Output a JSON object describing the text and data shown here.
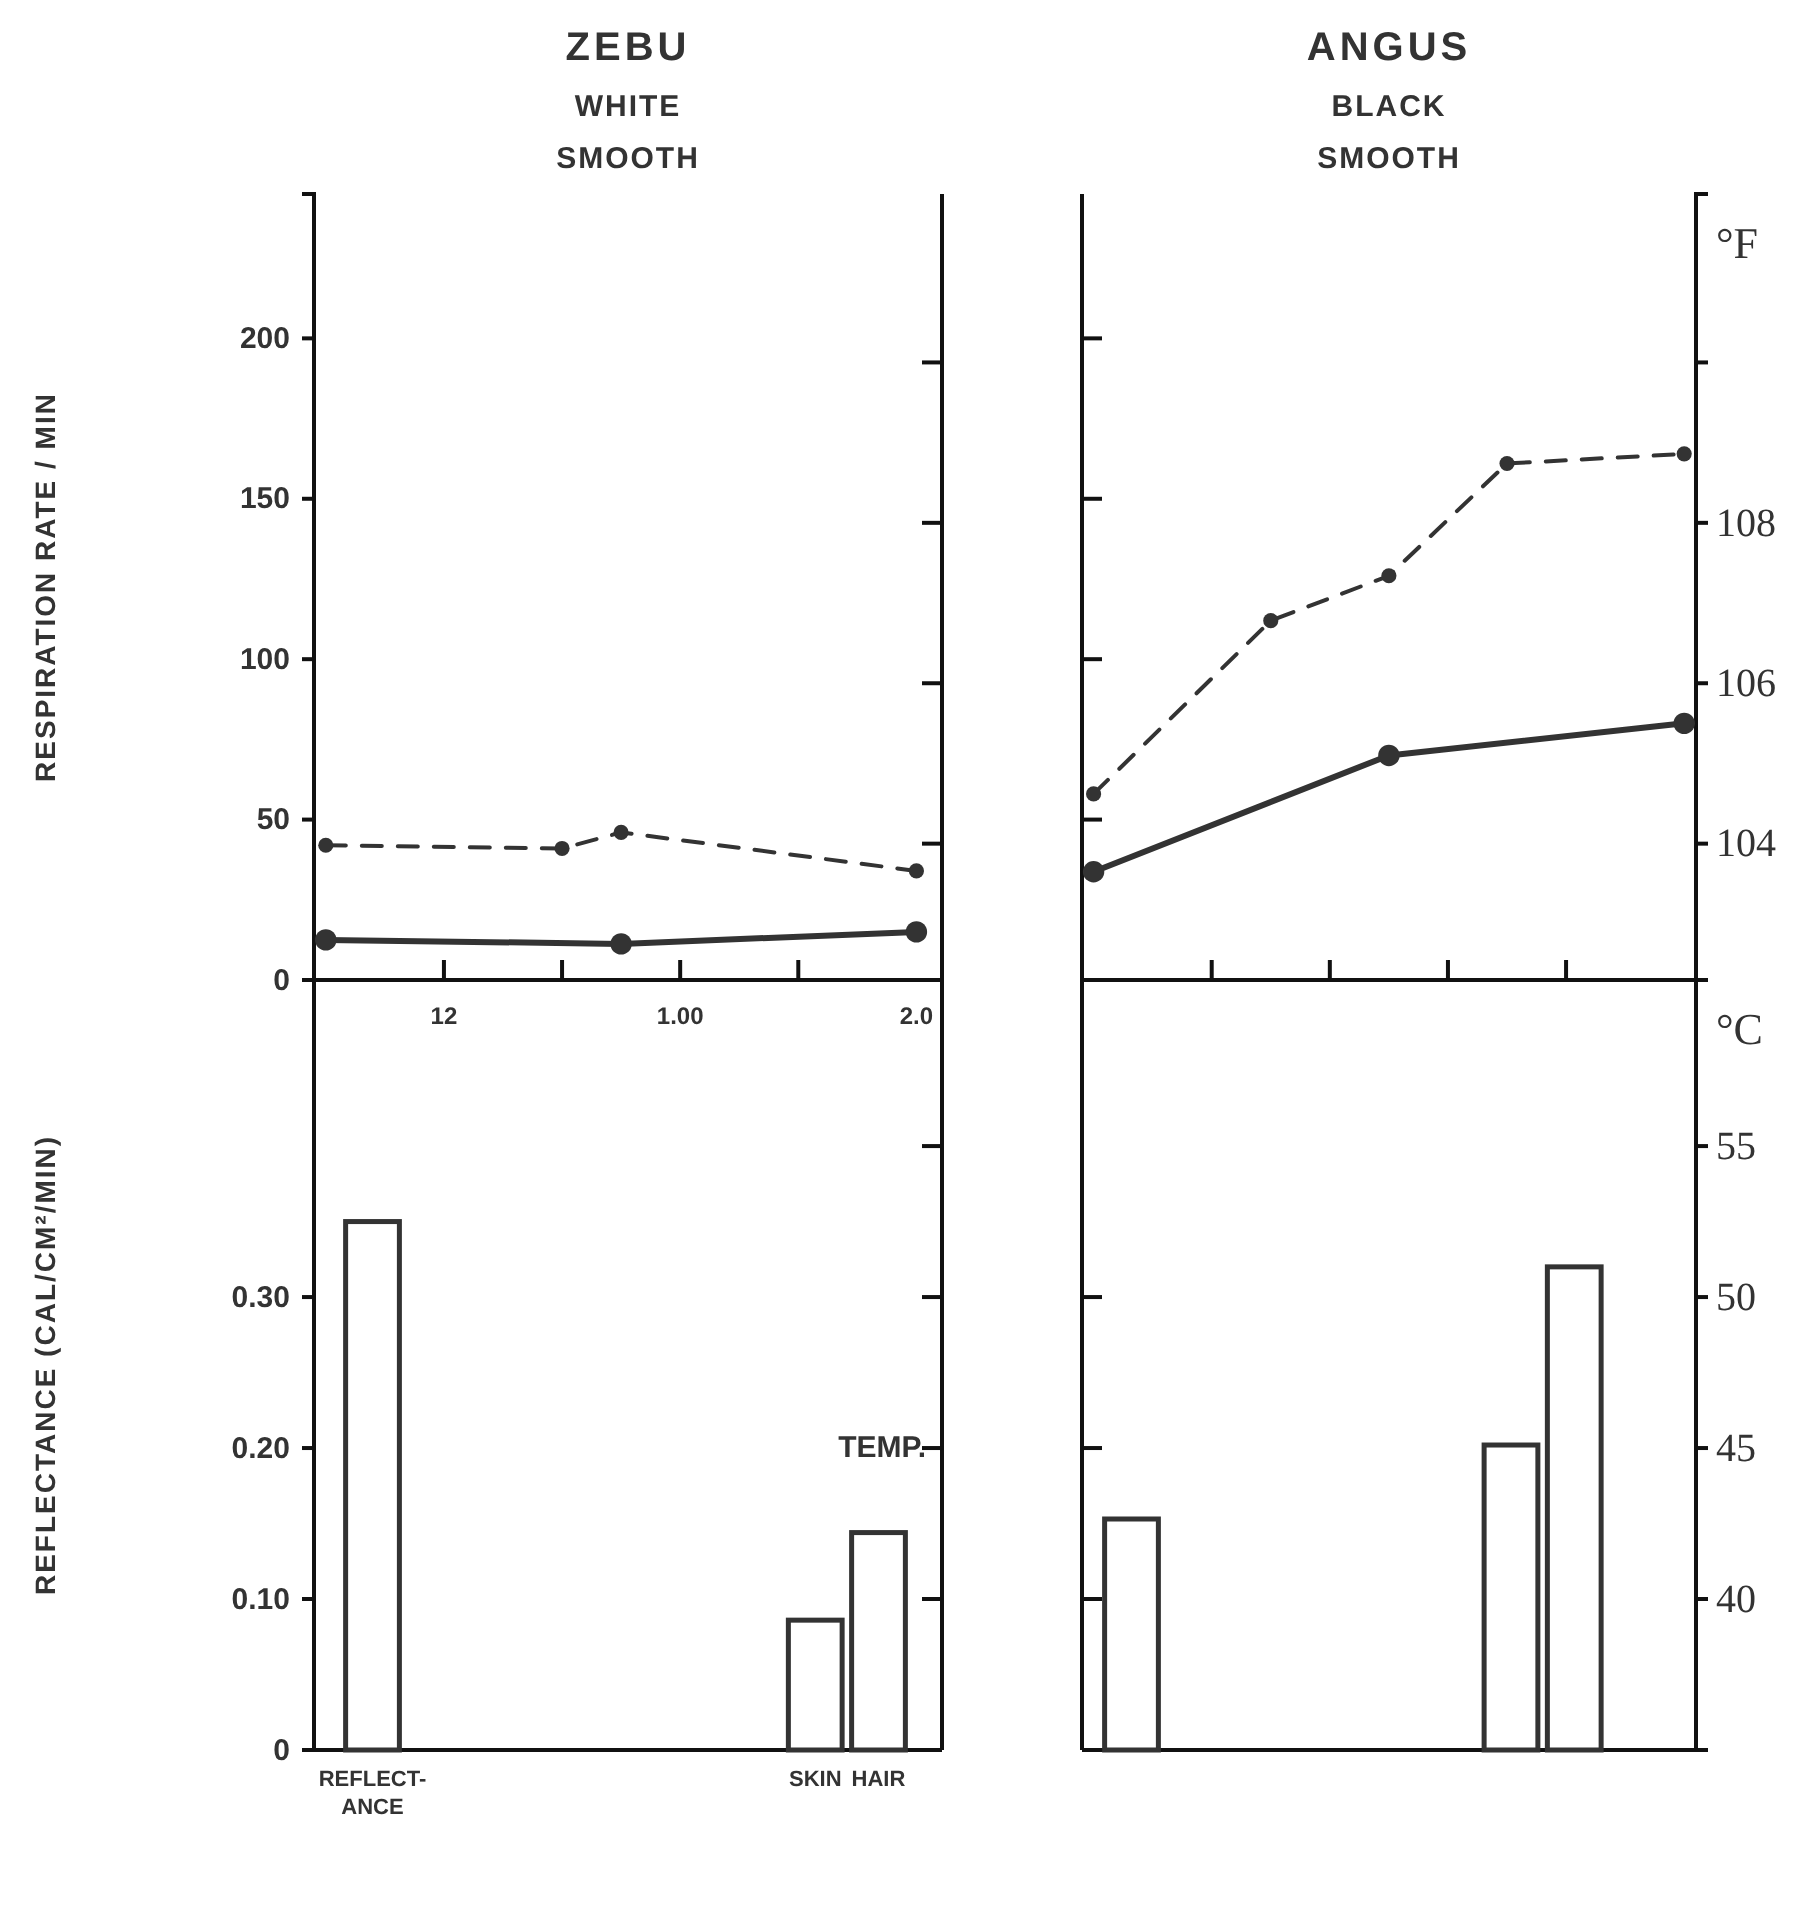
{
  "chart_data": [
    {
      "type": "line",
      "ylabel": "RESPIRATION RATE / MIN",
      "y2label": "°F",
      "annotations": [
        "ZEBU",
        "WHITE SMOOTH",
        "ANGUS",
        "BLACK SMOOTH"
      ],
      "categories": [
        null,
        null,
        "12",
        null,
        null,
        null,
        "1.00",
        null,
        null,
        null,
        "2.0",
        null,
        null,
        null,
        null,
        null,
        null,
        null,
        null,
        null,
        null,
        null,
        null,
        null
      ],
      "ylim": [
        0,
        245
      ],
      "yticks": [
        0,
        50,
        100,
        150,
        200
      ],
      "y2lim": [
        102.3,
        112.1
      ],
      "y2ticks": [
        104,
        106,
        108,
        {
          "value": 110,
          "label": null
        }
      ],
      "series": [
        {
          "type": "line",
          "color": "#333333",
          "line_style": "dashed",
          "marker": "circle",
          "values": [
            42,
            null,
            null,
            null,
            41,
            46,
            null,
            null,
            null,
            null,
            34,
            null,
            null,
            null,
            null,
            null,
            null,
            null,
            null,
            null,
            null,
            null,
            null,
            null
          ]
        },
        {
          "type": "line",
          "axis": "y2",
          "color": "#333333",
          "line_style": "solid",
          "marker": "circle",
          "values": [
            102.8,
            null,
            null,
            null,
            null,
            102.75,
            null,
            null,
            null,
            null,
            102.9,
            null,
            null,
            null,
            null,
            null,
            null,
            null,
            null,
            null,
            null,
            null,
            null,
            null
          ]
        },
        {
          "type": "line",
          "color": "#333333",
          "line_style": "dashed",
          "marker": "circle",
          "values": [
            null,
            null,
            null,
            null,
            null,
            null,
            null,
            null,
            null,
            null,
            null,
            null,
            null,
            58,
            null,
            null,
            112,
            null,
            126,
            null,
            161,
            null,
            null,
            164
          ]
        },
        {
          "type": "line",
          "axis": "y2",
          "color": "#333333",
          "line_style": "solid",
          "marker": "circle",
          "values": [
            null,
            null,
            null,
            null,
            null,
            null,
            null,
            null,
            null,
            null,
            null,
            null,
            null,
            103.65,
            null,
            null,
            null,
            null,
            105.1,
            null,
            null,
            null,
            null,
            105.5
          ]
        }
      ]
    },
    {
      "type": "bar",
      "ylabel": "REFLECTANCE (CAL/CM²/MIN)",
      "y2label": "°C",
      "annotations": [
        "TEMP."
      ],
      "categories": [
        "REFLECT-ANCE",
        null,
        null,
        null,
        null,
        null,
        null,
        "SKIN",
        "HAIR",
        null,
        null,
        null,
        null,
        null,
        null,
        null,
        null,
        null,
        null,
        null,
        null
      ],
      "ylim": [
        0,
        0.51
      ],
      "yticks": [
        0,
        {
          "value": 0.1,
          "label": "0.10"
        },
        {
          "value": 0.2,
          "label": "0.20"
        },
        {
          "value": 0.3,
          "label": "0.30"
        }
      ],
      "y2lim": [
        35,
        60.5
      ],
      "y2ticks": [
        40,
        45,
        50,
        55
      ],
      "series": [
        {
          "color": "#ffffff",
          "values": [
            0.35,
            null,
            null,
            null,
            null,
            null,
            null,
            null,
            null,
            null,
            null,
            null,
            0.153,
            null,
            null,
            null,
            null,
            null,
            null,
            null,
            null
          ]
        },
        {
          "color": "#ffffff",
          "axis": "y2",
          "values": [
            null,
            null,
            null,
            null,
            null,
            null,
            null,
            39.3,
            42.2,
            null,
            null,
            null,
            null,
            null,
            null,
            null,
            null,
            null,
            45.1,
            51.0,
            null
          ]
        }
      ]
    }
  ]
}
